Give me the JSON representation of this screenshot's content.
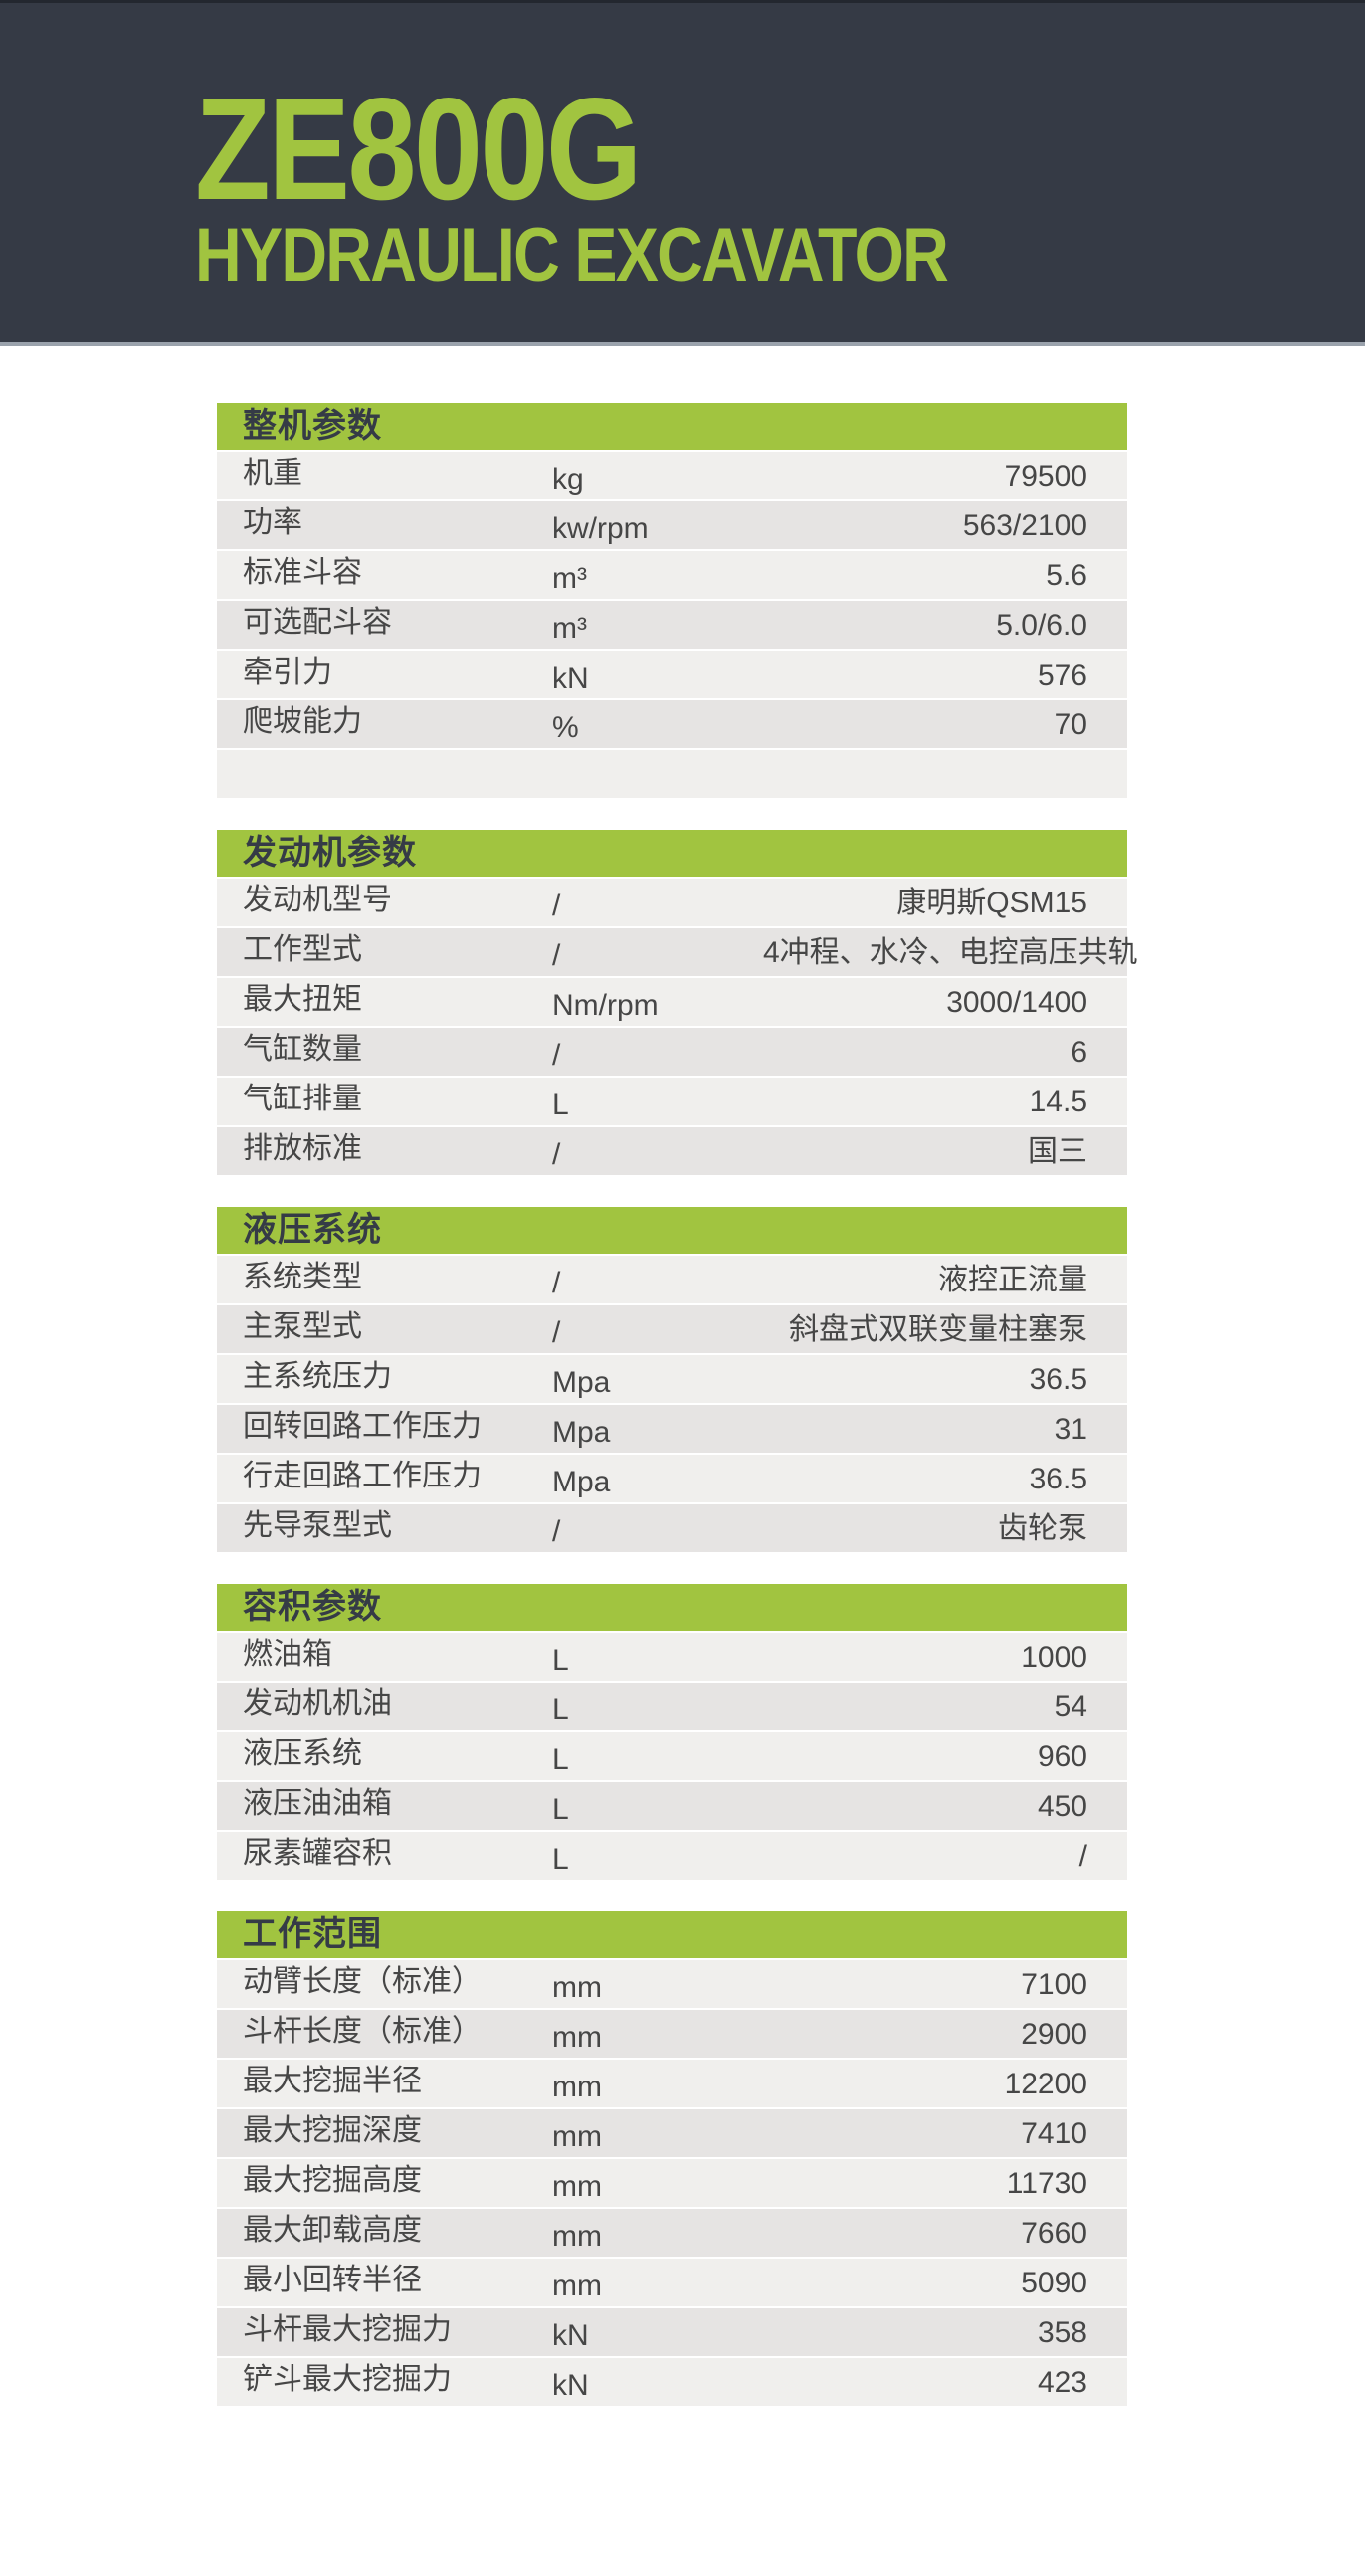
{
  "header": {
    "model": "ZE800G",
    "subtitle": "HYDRAULIC EXCAVATOR"
  },
  "colors": {
    "accent_green": "#a1c440",
    "band_dark": "#353a45",
    "row_light": "#f0efed",
    "row_dark": "#e6e4e3",
    "text_dark": "#464646"
  },
  "tables": [
    {
      "title": "整机参数",
      "rows": [
        {
          "label": "机重",
          "unit": "kg",
          "value": "79500"
        },
        {
          "label": "功率",
          "unit": "kw/rpm",
          "value": "563/2100"
        },
        {
          "label": "标准斗容",
          "unit": "m³",
          "value": "5.6"
        },
        {
          "label": "可选配斗容",
          "unit": "m³",
          "value": "5.0/6.0"
        },
        {
          "label": "牵引力",
          "unit": "kN",
          "value": "576"
        },
        {
          "label": "爬坡能力",
          "unit": "%",
          "value": "70"
        },
        {
          "label": "",
          "unit": "",
          "value": ""
        }
      ]
    },
    {
      "title": "发动机参数",
      "rows": [
        {
          "label": "发动机型号",
          "unit": "/",
          "value": "康明斯QSM15"
        },
        {
          "label": "工作型式",
          "unit": "/",
          "value": "4冲程、水冷、电控高压共轨"
        },
        {
          "label": "最大扭矩",
          "unit": "Nm/rpm",
          "value": "3000/1400"
        },
        {
          "label": "气缸数量",
          "unit": "/",
          "value": "6"
        },
        {
          "label": "气缸排量",
          "unit": "L",
          "value": "14.5"
        },
        {
          "label": "排放标准",
          "unit": "/",
          "value": "国三"
        }
      ]
    },
    {
      "title": "液压系统",
      "rows": [
        {
          "label": "系统类型",
          "unit": "/",
          "value": "液控正流量"
        },
        {
          "label": "主泵型式",
          "unit": "/",
          "value": "斜盘式双联变量柱塞泵"
        },
        {
          "label": "主系统压力",
          "unit": "Mpa",
          "value": "36.5"
        },
        {
          "label": "回转回路工作压力",
          "unit": "Mpa",
          "value": "31"
        },
        {
          "label": "行走回路工作压力",
          "unit": "Mpa",
          "value": "36.5"
        },
        {
          "label": "先导泵型式",
          "unit": "/",
          "value": "齿轮泵"
        }
      ]
    },
    {
      "title": "容积参数",
      "rows": [
        {
          "label": "燃油箱",
          "unit": "L",
          "value": "1000"
        },
        {
          "label": "发动机机油",
          "unit": "L",
          "value": "54"
        },
        {
          "label": "液压系统",
          "unit": "L",
          "value": "960"
        },
        {
          "label": "液压油油箱",
          "unit": "L",
          "value": "450"
        },
        {
          "label": "尿素罐容积",
          "unit": "L",
          "value": "/"
        }
      ]
    },
    {
      "title": "工作范围",
      "rows": [
        {
          "label": "动臂长度（标准）",
          "unit": "mm",
          "value": "7100"
        },
        {
          "label": "斗杆长度（标准）",
          "unit": "mm",
          "value": "2900"
        },
        {
          "label": "最大挖掘半径",
          "unit": "mm",
          "value": "12200"
        },
        {
          "label": "最大挖掘深度",
          "unit": "mm",
          "value": "7410"
        },
        {
          "label": "最大挖掘高度",
          "unit": "mm",
          "value": "11730"
        },
        {
          "label": "最大卸载高度",
          "unit": "mm",
          "value": "7660"
        },
        {
          "label": "最小回转半径",
          "unit": "mm",
          "value": "5090"
        },
        {
          "label": "斗杆最大挖掘力",
          "unit": "kN",
          "value": "358"
        },
        {
          "label": "铲斗最大挖掘力",
          "unit": "kN",
          "value": "423"
        }
      ]
    }
  ]
}
